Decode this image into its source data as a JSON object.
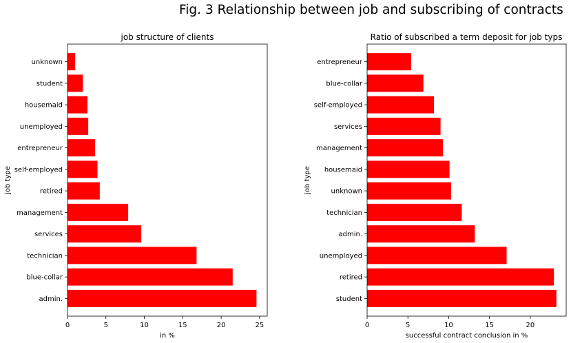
{
  "figure": {
    "title": "Fig. 3 Relationship between job and subscribing of contracts"
  },
  "chart_data": [
    {
      "type": "bar",
      "orientation": "horizontal",
      "title": "job structure of clients",
      "xlabel": "in %",
      "ylabel": "job type",
      "categories": [
        "admin.",
        "blue-collar",
        "technician",
        "services",
        "management",
        "retired",
        "self-employed",
        "entrepreneur",
        "unemployed",
        "housemaid",
        "student",
        "unknown"
      ],
      "values": [
        24.6,
        21.5,
        16.8,
        9.6,
        7.9,
        4.2,
        3.9,
        3.6,
        2.7,
        2.6,
        2.0,
        1.0
      ],
      "xlim": [
        0,
        26
      ],
      "xticks": [
        0,
        5,
        10,
        15,
        20,
        25
      ],
      "color": "#ff0000",
      "grid": false
    },
    {
      "type": "bar",
      "orientation": "horizontal",
      "title": "Ratio of subscribed a term deposit for job typs",
      "xlabel": "successful contract conclusion in %",
      "ylabel": "job type",
      "categories": [
        "student",
        "retired",
        "unemployed",
        "admin.",
        "technician",
        "unknown",
        "housemaid",
        "management",
        "services",
        "self-employed",
        "blue-collar",
        "entrepreneur"
      ],
      "values": [
        23.2,
        22.9,
        17.1,
        13.2,
        11.6,
        10.3,
        10.1,
        9.3,
        9.0,
        8.2,
        6.9,
        5.4
      ],
      "xlim": [
        0,
        24.4
      ],
      "xticks": [
        0,
        5,
        10,
        15,
        20
      ],
      "color": "#ff0000",
      "grid": false
    }
  ]
}
